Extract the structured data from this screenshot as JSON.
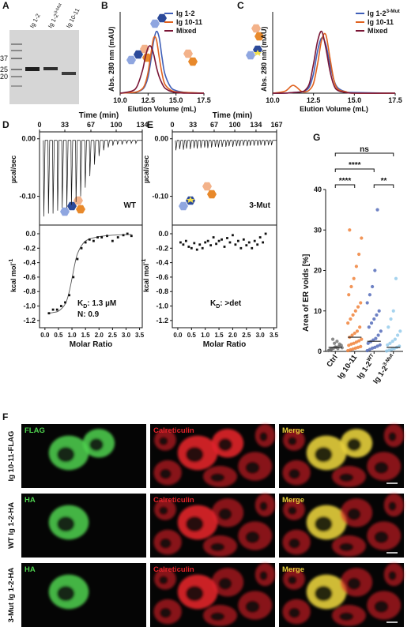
{
  "panel_labels": [
    "A",
    "B",
    "C",
    "D",
    "E",
    "F",
    "G"
  ],
  "gel": {
    "lanes": [
      {
        "text": "Ig 1-2"
      },
      {
        "text": "Ig 1-2",
        "sup": "3-Mut"
      },
      {
        "text": "Ig 10-11"
      }
    ],
    "markers": [
      37,
      25,
      20
    ]
  },
  "chart_data": [
    {
      "type": "line",
      "ylabel": "Abs. 280 nm (mAU)",
      "xlabel": "Elution Volume (mL)",
      "legend": "upper right",
      "xlim": [
        10,
        17.5
      ],
      "xticks": [
        {
          "value": 10,
          "label": "10.0"
        },
        12.5,
        {
          "value": 15,
          "label": "15.0"
        },
        17.5
      ],
      "ylim": [
        0,
        1.25
      ],
      "x": [
        10,
        11,
        11.5,
        12,
        12.25,
        12.5,
        12.75,
        13,
        13.25,
        13.5,
        13.75,
        14,
        14.5,
        15,
        16,
        17.5
      ],
      "series": [
        {
          "name": "Ig 1-2",
          "color": "#3f5fb8",
          "values": [
            0,
            0.01,
            0.02,
            0.06,
            0.12,
            0.25,
            0.5,
            0.8,
            0.95,
            0.85,
            0.55,
            0.3,
            0.1,
            0.04,
            0.01,
            0
          ]
        },
        {
          "name": "Ig 10-11",
          "color": "#e0621f",
          "values": [
            0,
            0.01,
            0.02,
            0.07,
            0.15,
            0.32,
            0.6,
            0.85,
            0.82,
            0.55,
            0.3,
            0.14,
            0.05,
            0.02,
            0.01,
            0
          ]
        },
        {
          "name": "Mixed",
          "color": "#7a1535",
          "values": [
            0,
            0.03,
            0.1,
            0.35,
            0.55,
            0.7,
            0.72,
            0.6,
            0.4,
            0.25,
            0.15,
            0.08,
            0.03,
            0.01,
            0,
            0
          ]
        }
      ]
    },
    {
      "type": "line",
      "ylabel": "Abs. 280 nm (mAU)",
      "xlabel": "Elution Volume (mL)",
      "legend": "upper right",
      "xlim": [
        10,
        17.5
      ],
      "xticks": [
        {
          "value": 10,
          "label": "10.0"
        },
        12.5,
        {
          "value": 15,
          "label": "15.0"
        },
        17.5
      ],
      "ylim": [
        0,
        1.25
      ],
      "x": [
        10,
        10.75,
        11.25,
        11.75,
        12,
        12.25,
        12.5,
        12.75,
        13,
        13.25,
        13.5,
        13.75,
        14,
        14.5,
        15,
        17.5
      ],
      "series": [
        {
          "name": "Ig 1-2",
          "name_sup": "3-Mut",
          "color": "#3f5fb8",
          "values": [
            0,
            0,
            0.01,
            0.02,
            0.04,
            0.1,
            0.3,
            0.65,
            0.85,
            0.75,
            0.45,
            0.2,
            0.08,
            0.02,
            0.01,
            0
          ]
        },
        {
          "name": "Ig 10-11",
          "color": "#e0621f",
          "values": [
            0,
            0.03,
            0.12,
            0.03,
            0.02,
            0.05,
            0.15,
            0.45,
            0.82,
            0.9,
            0.55,
            0.2,
            0.06,
            0.02,
            0,
            0
          ]
        },
        {
          "name": "Mixed",
          "color": "#7a1535",
          "values": [
            0,
            0,
            0.01,
            0.02,
            0.05,
            0.15,
            0.45,
            0.8,
            0.95,
            0.7,
            0.35,
            0.12,
            0.04,
            0.01,
            0,
            0
          ]
        }
      ]
    },
    {
      "type": "itc-raw",
      "title": "Time (min)",
      "ylabel": "µcal/sec",
      "annotation": "WT",
      "color": "#111111",
      "xlim": [
        0,
        134
      ],
      "xticks": [
        0,
        33,
        67,
        100,
        134
      ],
      "ylim": [
        -0.15,
        0.012
      ],
      "yticks": [
        {
          "value": 0,
          "label": "0.00"
        },
        {
          "value": -0.1,
          "label": "-0.10"
        }
      ],
      "x": [
        5,
        11,
        17,
        23,
        29,
        35,
        41,
        47,
        53,
        59,
        65,
        71,
        77,
        83,
        89,
        95,
        101,
        107,
        113,
        119,
        125
      ],
      "values": [
        -0.135,
        -0.13,
        -0.13,
        -0.125,
        -0.12,
        -0.12,
        -0.115,
        -0.11,
        -0.1,
        -0.085,
        -0.065,
        -0.045,
        -0.03,
        -0.02,
        -0.015,
        -0.012,
        -0.01,
        -0.01,
        -0.008,
        -0.008,
        -0.008
      ]
    },
    {
      "type": "itc-scatter",
      "xlabel": "Molar Ratio",
      "ylabel": {
        "text": "kcal mol",
        "sup": "-1"
      },
      "color": "#111111",
      "xlim": [
        -0.2,
        3.6
      ],
      "xticks": [
        {
          "value": 0,
          "label": "0.0"
        },
        0.5,
        {
          "value": 1,
          "label": "1.0"
        },
        1.5,
        {
          "value": 2,
          "label": "2.0"
        },
        2.5,
        {
          "value": 3,
          "label": "3.0"
        },
        3.5
      ],
      "ylim": [
        -1.3,
        0.12
      ],
      "yticks": [
        {
          "value": 0,
          "label": "0.0"
        },
        -0.2,
        -0.4,
        -0.6,
        -0.8,
        {
          "value": -1,
          "label": "-1.0"
        },
        -1.2
      ],
      "x": [
        0.15,
        0.3,
        0.45,
        0.6,
        0.75,
        0.9,
        1.05,
        1.2,
        1.35,
        1.5,
        1.65,
        1.8,
        1.95,
        2.1,
        2.3,
        2.5,
        2.7,
        2.9,
        3.05,
        3.2
      ],
      "values": [
        -1.1,
        -1.05,
        -1.05,
        -1.0,
        -0.95,
        -0.85,
        -0.6,
        -0.35,
        -0.2,
        -0.12,
        -0.08,
        -0.1,
        -0.05,
        -0.05,
        -0.03,
        -0.1,
        -0.05,
        -0.02,
        0.0,
        -0.03
      ],
      "fit": {
        "x": [
          0.1,
          0.3,
          0.5,
          0.7,
          0.8,
          0.9,
          1.0,
          1.1,
          1.2,
          1.4,
          1.6,
          2.0,
          2.5,
          3.2
        ],
        "values": [
          -1.1,
          -1.09,
          -1.07,
          -1.0,
          -0.93,
          -0.8,
          -0.62,
          -0.43,
          -0.28,
          -0.14,
          -0.08,
          -0.04,
          -0.02,
          -0.01
        ]
      },
      "kd": {
        "main": "K",
        "sub": "D",
        "rest": ": 1.3 µM"
      },
      "n": "N: 0.9"
    },
    {
      "type": "itc-raw",
      "title": "Time (min)",
      "ylabel": "µcal/sec",
      "annotation": "3-Mut",
      "color": "#111111",
      "xlim": [
        0,
        167
      ],
      "xticks": [
        0,
        33,
        67,
        100,
        134,
        167
      ],
      "ylim": [
        -0.15,
        0.012
      ],
      "yticks": [
        {
          "value": 0,
          "label": "0.00"
        },
        {
          "value": -0.1,
          "label": "-0.10"
        }
      ],
      "x": [
        5,
        11,
        17,
        22,
        28,
        34,
        39,
        45,
        51,
        56,
        62,
        68,
        73,
        79,
        85,
        90,
        96,
        102,
        107,
        113,
        119,
        124,
        130,
        136,
        141,
        147,
        153,
        158
      ],
      "values": [
        -0.02,
        -0.018,
        -0.019,
        -0.017,
        -0.018,
        -0.016,
        -0.017,
        -0.016,
        -0.015,
        -0.016,
        -0.015,
        -0.014,
        -0.015,
        -0.014,
        -0.014,
        -0.013,
        -0.014,
        -0.013,
        -0.013,
        -0.012,
        -0.013,
        -0.012,
        -0.012,
        -0.012,
        -0.011,
        -0.012,
        -0.011,
        -0.011
      ]
    },
    {
      "type": "itc-scatter",
      "xlabel": "Molar Ratio",
      "ylabel": {
        "text": "kcal mol",
        "sup": "-1"
      },
      "color": "#111111",
      "xlim": [
        -0.2,
        3.6
      ],
      "xticks": [
        {
          "value": 0,
          "label": "0.0"
        },
        0.5,
        {
          "value": 1,
          "label": "1.0"
        },
        1.5,
        {
          "value": 2,
          "label": "2.0"
        },
        2.5,
        {
          "value": 3,
          "label": "3.0"
        },
        3.5
      ],
      "ylim": [
        -1.3,
        0.12
      ],
      "yticks": [
        {
          "value": 0,
          "label": "0.0"
        },
        -0.2,
        -0.4,
        -0.6,
        -0.8,
        {
          "value": -1,
          "label": "-1.0"
        },
        -1.2
      ],
      "x": [
        0.1,
        0.2,
        0.3,
        0.4,
        0.5,
        0.6,
        0.7,
        0.8,
        0.9,
        1.0,
        1.1,
        1.2,
        1.3,
        1.4,
        1.5,
        1.6,
        1.7,
        1.8,
        1.9,
        2.0,
        2.1,
        2.2,
        2.3,
        2.4,
        2.5,
        2.6,
        2.7,
        2.8,
        2.9,
        3.0,
        3.1,
        3.2
      ],
      "values": [
        -0.12,
        -0.15,
        -0.1,
        -0.18,
        -0.2,
        -0.13,
        -0.22,
        -0.15,
        -0.2,
        -0.12,
        -0.1,
        -0.16,
        -0.05,
        -0.14,
        -0.1,
        -0.08,
        -0.18,
        -0.06,
        -0.12,
        -0.02,
        -0.15,
        -0.1,
        -0.2,
        -0.08,
        -0.16,
        -0.12,
        -0.2,
        -0.1,
        -0.15,
        -0.05,
        -0.12,
        0.0
      ],
      "kd": {
        "main": "K",
        "sub": "D",
        "rest": ": >det"
      }
    },
    {
      "type": "strip",
      "ylabel": "Area of ER voids [%]",
      "ylim": [
        0,
        40
      ],
      "yticks": [
        0,
        10,
        20,
        30,
        40
      ],
      "categories": [
        {
          "text": "Ctrl"
        },
        {
          "text": "Ig 10-11"
        },
        {
          "text": "Ig 1-2",
          "sup": "WT"
        },
        {
          "text": "Ig 1-2",
          "sup": "3-Mut"
        }
      ],
      "series": [
        {
          "color": "#6e6e6e",
          "mean": 1,
          "values": [
            0.2,
            0.5,
            0.8,
            1,
            1.2,
            1.5,
            0.3,
            0.6,
            2,
            2.5,
            1.8,
            0.9,
            0.4,
            3,
            1.1,
            0.7
          ]
        },
        {
          "color": "#ef7a2e",
          "mean": 3.5,
          "values": [
            0.2,
            0.4,
            0.6,
            0.8,
            1,
            1.2,
            1.5,
            1.8,
            2,
            2.3,
            2.6,
            3,
            3.5,
            4,
            4.5,
            5,
            6,
            7,
            8,
            9,
            10,
            11,
            12,
            14,
            16,
            18,
            21,
            24,
            28,
            30
          ]
        },
        {
          "color": "#4a63b5",
          "mean": 2.5,
          "values": [
            0.2,
            0.5,
            0.8,
            1,
            1.3,
            1.6,
            2,
            2.4,
            2.8,
            3.2,
            4,
            5,
            6,
            7,
            8,
            9,
            10,
            12,
            14,
            16,
            20,
            35
          ]
        },
        {
          "color": "#8ec8ea",
          "mean": 1,
          "values": [
            0.1,
            0.3,
            0.5,
            0.7,
            1,
            1.3,
            1.6,
            2,
            2.5,
            3,
            4,
            5,
            6,
            8,
            10,
            18
          ]
        }
      ],
      "significance": [
        {
          "label": "ns",
          "from": 0,
          "to": 3
        },
        {
          "label": "****",
          "from": 0,
          "to": 2
        },
        {
          "label": "****",
          "from": 0,
          "to": 1
        },
        {
          "label": "**",
          "from": 2,
          "to": 3
        }
      ]
    }
  ],
  "microscopy": {
    "rows": [
      {
        "label": "Ig 10-11-FLAG",
        "channels": [
          "FLAG",
          "Calreticulin",
          "Merge"
        ]
      },
      {
        "label": "WT Ig 1-2-HA",
        "channels": [
          "HA",
          "Calreticulin",
          "Merge"
        ]
      },
      {
        "label": "3-Mut Ig 1-2-HA",
        "channels": [
          "HA",
          "Calreticulin",
          "Merge"
        ]
      }
    ]
  }
}
